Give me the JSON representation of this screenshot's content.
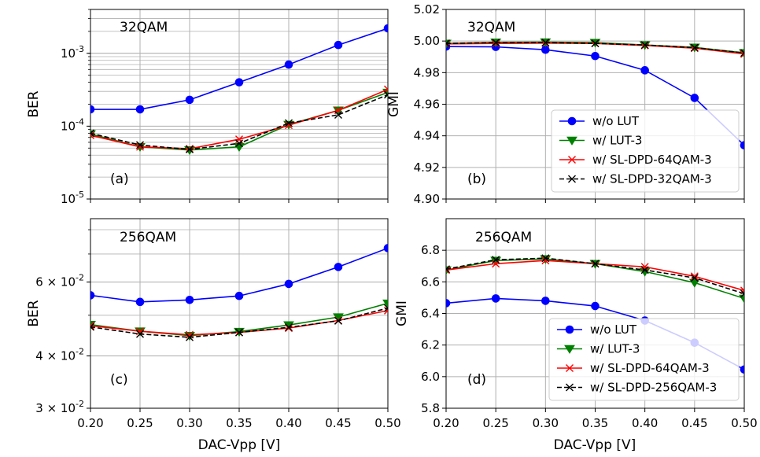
{
  "chart_data": [
    {
      "type": "line",
      "panel_label": "(a)",
      "modulation_label": "32QAM",
      "ylabel": "BER",
      "yscale": "log",
      "ylim": [
        1e-05,
        0.004
      ],
      "y_ticks": [
        {
          "value": 1e-05,
          "label": "10^{-5}"
        },
        {
          "value": 0.0001,
          "label": "10^{-4}"
        },
        {
          "value": 0.001,
          "label": "10^{-3}"
        }
      ],
      "xlim": [
        0.2,
        0.5
      ],
      "x": [
        0.2,
        0.25,
        0.3,
        0.35,
        0.4,
        0.45,
        0.5
      ],
      "grid": true,
      "series": [
        {
          "name": "w/o LUT",
          "values": [
            0.00017,
            0.00017,
            0.00023,
            0.0004,
            0.0007,
            0.0013,
            0.0022
          ]
        },
        {
          "name": "w/ LUT-3",
          "values": [
            7.8e-05,
            5.2e-05,
            4.7e-05,
            5.2e-05,
            0.000105,
            0.000165,
            0.00029
          ]
        },
        {
          "name": "w/ SL-DPD-64QAM-3",
          "values": [
            7.5e-05,
            5.2e-05,
            4.9e-05,
            6.6e-05,
            0.000103,
            0.000165,
            0.00032
          ]
        },
        {
          "name": "w/ SL-DPD-32QAM-3",
          "values": [
            8e-05,
            5.5e-05,
            4.8e-05,
            5.8e-05,
            0.00011,
            0.000143,
            0.00027
          ]
        }
      ]
    },
    {
      "type": "line",
      "panel_label": "(b)",
      "modulation_label": "32QAM",
      "ylabel": "GMI",
      "ylim": [
        4.9,
        5.02
      ],
      "y_ticks": [
        {
          "value": 4.9,
          "label": "4.90"
        },
        {
          "value": 4.92,
          "label": "4.92"
        },
        {
          "value": 4.94,
          "label": "4.94"
        },
        {
          "value": 4.96,
          "label": "4.96"
        },
        {
          "value": 4.98,
          "label": "4.98"
        },
        {
          "value": 5.0,
          "label": "5.00"
        },
        {
          "value": 5.02,
          "label": "5.02"
        }
      ],
      "xlim": [
        0.2,
        0.5
      ],
      "x": [
        0.2,
        0.25,
        0.3,
        0.35,
        0.4,
        0.45,
        0.5
      ],
      "grid": true,
      "legend_position": "lower-right",
      "series": [
        {
          "name": "w/o LUT",
          "values": [
            4.9965,
            4.9963,
            4.9945,
            4.9905,
            4.9815,
            4.964,
            4.934
          ]
        },
        {
          "name": "w/ LUT-3",
          "values": [
            4.9985,
            4.9992,
            4.9993,
            4.999,
            4.9975,
            4.996,
            4.9925
          ]
        },
        {
          "name": "w/ SL-DPD-64QAM-3",
          "values": [
            4.9982,
            4.9985,
            4.9987,
            4.9985,
            4.9972,
            4.9955,
            4.9918
          ]
        },
        {
          "name": "w/ SL-DPD-32QAM-3",
          "values": [
            4.9985,
            4.999,
            4.999,
            4.9985,
            4.9975,
            4.9958,
            4.9925
          ]
        }
      ]
    },
    {
      "type": "line",
      "panel_label": "(c)",
      "modulation_label": "256QAM",
      "ylabel": "BER",
      "yscale": "log",
      "ylim": [
        0.03,
        0.085
      ],
      "y_ticks": [
        {
          "value": 0.03,
          "label": "3 × 10^{-2}"
        },
        {
          "value": 0.04,
          "label": "4 × 10^{-2}"
        },
        {
          "value": 0.06,
          "label": "6 × 10^{-2}"
        }
      ],
      "xlim": [
        0.2,
        0.5
      ],
      "x": [
        0.2,
        0.25,
        0.3,
        0.35,
        0.4,
        0.45,
        0.5
      ],
      "grid": true,
      "series": [
        {
          "name": "w/o LUT",
          "values": [
            0.0558,
            0.0538,
            0.0544,
            0.0556,
            0.0594,
            0.0652,
            0.0723
          ]
        },
        {
          "name": "w/ LUT-3",
          "values": [
            0.0475,
            0.0458,
            0.0447,
            0.0457,
            0.0474,
            0.0495,
            0.0534
          ]
        },
        {
          "name": "w/ SL-DPD-64QAM-3",
          "values": [
            0.0472,
            0.0458,
            0.0449,
            0.0455,
            0.0466,
            0.0486,
            0.0513
          ]
        },
        {
          "name": "w/ SL-DPD-256QAM-3",
          "values": [
            0.0469,
            0.0451,
            0.0443,
            0.0455,
            0.0468,
            0.0485,
            0.052
          ]
        }
      ]
    },
    {
      "type": "line",
      "panel_label": "(d)",
      "modulation_label": "256QAM",
      "ylabel": "GMI",
      "ylim": [
        5.8,
        7.0
      ],
      "y_ticks": [
        {
          "value": 5.8,
          "label": "5.8"
        },
        {
          "value": 6.0,
          "label": "6.0"
        },
        {
          "value": 6.2,
          "label": "6.2"
        },
        {
          "value": 6.4,
          "label": "6.4"
        },
        {
          "value": 6.6,
          "label": "6.6"
        },
        {
          "value": 6.8,
          "label": "6.8"
        }
      ],
      "xlim": [
        0.2,
        0.5
      ],
      "x": [
        0.2,
        0.25,
        0.3,
        0.35,
        0.4,
        0.45,
        0.5
      ],
      "grid": true,
      "legend_position": "lower-right",
      "series": [
        {
          "name": "w/o LUT",
          "values": [
            6.465,
            6.495,
            6.48,
            6.447,
            6.355,
            6.215,
            6.045
          ]
        },
        {
          "name": "w/ LUT-3",
          "values": [
            6.675,
            6.735,
            6.745,
            6.715,
            6.665,
            6.595,
            6.495
          ]
        },
        {
          "name": "w/ SL-DPD-64QAM-3",
          "values": [
            6.675,
            6.715,
            6.735,
            6.715,
            6.695,
            6.635,
            6.545
          ]
        },
        {
          "name": "w/ SL-DPD-256QAM-3",
          "values": [
            6.68,
            6.74,
            6.75,
            6.715,
            6.675,
            6.625,
            6.525
          ]
        }
      ]
    }
  ],
  "x_ticks": [
    "0.20",
    "0.25",
    "0.30",
    "0.35",
    "0.40",
    "0.45",
    "0.50"
  ],
  "xlabel": "DAC-Vpp [V]",
  "series_styles": [
    {
      "color": "#0000ff",
      "marker": "circle",
      "dash": "solid"
    },
    {
      "color": "#008000",
      "marker": "triangle-down",
      "dash": "solid"
    },
    {
      "color": "#ff0000",
      "marker": "x",
      "dash": "solid"
    },
    {
      "color": "#000000",
      "marker": "x",
      "dash": "dashed"
    }
  ]
}
